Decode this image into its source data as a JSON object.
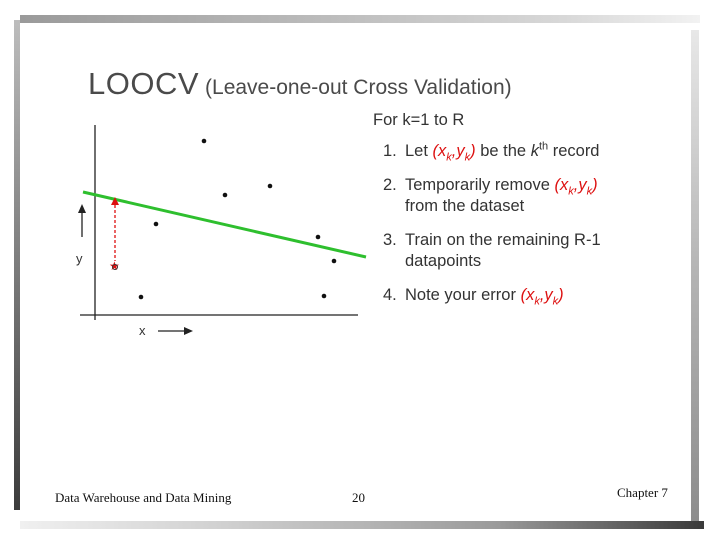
{
  "slide": {
    "title_main": "LOOCV",
    "title_sub": "(Leave-one-out Cross Validation)"
  },
  "plot": {
    "y_label": "y",
    "x_label": "x",
    "line_color": "#2ebf2e",
    "highlight_color": "#dd1111"
  },
  "steps": {
    "heading": "For k=1 to R",
    "items": [
      {
        "num": "1.",
        "pre": "Let",
        "pair_a": "x",
        "pair_a_sub": "k",
        "pair_b": "y",
        "pair_b_sub": "k",
        "post_a": "be the",
        "sup_base": "k",
        "sup": "th",
        "post_b": "record"
      },
      {
        "num": "2.",
        "pre": "Temporarily remove",
        "pair_a": "x",
        "pair_a_sub": "k",
        "pair_b": "y",
        "pair_b_sub": "k",
        "line2": "from the dataset"
      },
      {
        "num": "3.",
        "line1": "Train on the remaining R-1",
        "line2": "datapoints"
      },
      {
        "num": "4.",
        "pre": "Note your error",
        "pair_a": "x",
        "pair_a_sub": "k",
        "pair_b": "y",
        "pair_b_sub": "k"
      }
    ]
  },
  "footer": {
    "left": "Data Warehouse and Data Mining",
    "page": "20",
    "right": "Chapter 7"
  }
}
